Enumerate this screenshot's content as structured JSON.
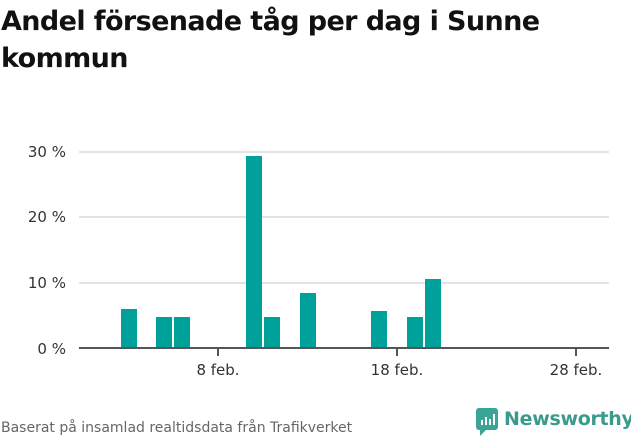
{
  "title": "Andel försenade tåg per dag i Sunne kommun",
  "footer": {
    "source": "Baserat på insamlad realtidsdata från Trafikverket",
    "brand": "Newsworthy"
  },
  "colors": {
    "bar": "#00a19a",
    "grid": "#e3e3e3",
    "axis": "#555555",
    "brand": "#3aa597"
  },
  "chart_data": {
    "type": "bar",
    "title": "Andel försenade tåg per dag i Sunne kommun",
    "xlabel": "",
    "ylabel": "",
    "ylim": [
      0,
      30
    ],
    "yticks": [
      "0 %",
      "10 %",
      "20 %",
      "30 %"
    ],
    "xticks": [
      "8 feb.",
      "18 feb.",
      "28 feb."
    ],
    "grid": true,
    "legend": null,
    "categories": [
      "3 feb.",
      "5 feb.",
      "6 feb.",
      "10 feb.",
      "11 feb.",
      "13 feb.",
      "17 feb.",
      "19 feb.",
      "20 feb."
    ],
    "values": [
      6.0,
      4.8,
      4.8,
      29.4,
      4.8,
      8.4,
      5.7,
      4.8,
      10.6
    ],
    "unit": "%"
  }
}
